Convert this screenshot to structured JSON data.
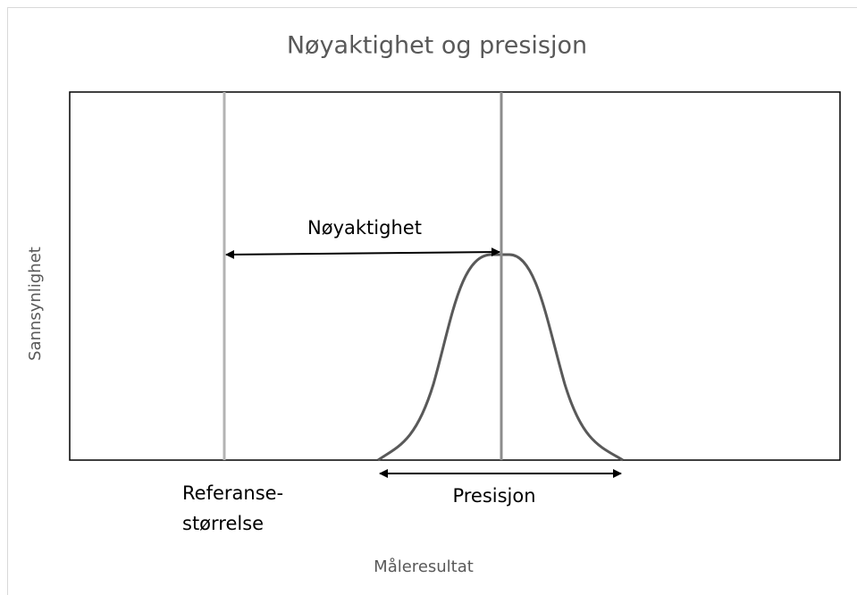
{
  "title": "Nøyaktighet og presisjon",
  "y_axis_label": "Sannsynlighet",
  "x_axis_label": "Måleresultat",
  "annotations": {
    "accuracy": "Nøyaktighet",
    "precision": "Presisjon",
    "reference": [
      "Referanse-",
      "størrelse"
    ]
  }
}
